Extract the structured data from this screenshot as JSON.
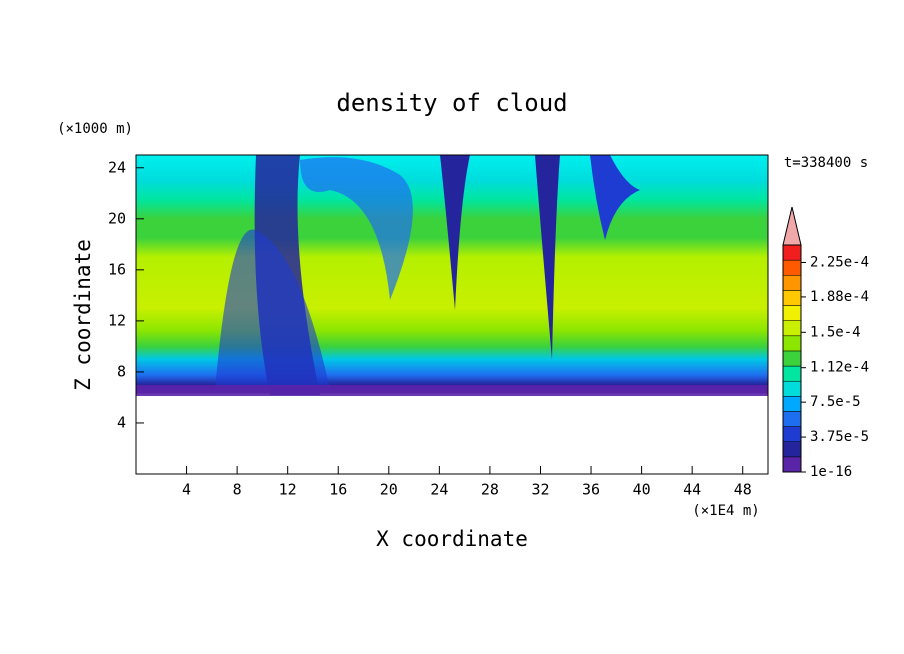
{
  "chart_data": {
    "type": "contourf",
    "title": "density of cloud",
    "x_label": "X coordinate",
    "x_unit": "(×1E4 m)",
    "y_label": "Z coordinate",
    "y_unit": "(×1000 m)",
    "annotation": "t=338400 s",
    "xlim": [
      0,
      50
    ],
    "xticks": [
      4,
      8,
      12,
      16,
      20,
      24,
      28,
      32,
      36,
      40,
      44,
      48
    ],
    "ylim": [
      0,
      25
    ],
    "yticks": [
      4,
      8,
      12,
      16,
      20,
      24
    ],
    "colorbar": {
      "clim": [
        1e-16,
        0.00024375
      ],
      "colors": [
        "#5a24a8",
        "#24249c",
        "#1e3cd2",
        "#1e6ef0",
        "#00a8ff",
        "#00dcdc",
        "#00e6a0",
        "#3cd23c",
        "#8ce600",
        "#c8f000",
        "#f0f000",
        "#ffc800",
        "#ff9600",
        "#ff5a00",
        "#f01e1e"
      ],
      "extend_color": "#f0a8a8",
      "ticks": [
        {
          "value": 1e-16,
          "label": "1e-16"
        },
        {
          "value": 3.75e-05,
          "label": "3.75e-5"
        },
        {
          "value": 7.5e-05,
          "label": "7.5e-5"
        },
        {
          "value": 0.000112,
          "label": "1.12e-4"
        },
        {
          "value": 0.00015,
          "label": "1.5e-4"
        },
        {
          "value": 0.000188,
          "label": "1.88e-4"
        },
        {
          "value": 0.000225,
          "label": "2.25e-4"
        }
      ]
    }
  }
}
